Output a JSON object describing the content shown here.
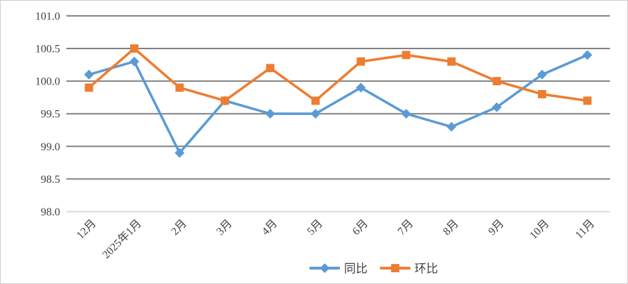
{
  "chart_data": {
    "type": "line",
    "title": "",
    "categories": [
      "12月",
      "2025年1月",
      "2月",
      "3月",
      "4月",
      "5月",
      "6月",
      "7月",
      "8月",
      "9月",
      "10月",
      "11月"
    ],
    "series": [
      {
        "name": "同比",
        "marker": "diamond",
        "color": "#5B9BD5",
        "values": [
          100.1,
          100.3,
          98.9,
          99.7,
          99.5,
          99.5,
          99.9,
          99.5,
          99.3,
          99.6,
          100.1,
          100.4
        ]
      },
      {
        "name": "环比",
        "marker": "square",
        "color": "#ED7D31",
        "values": [
          99.9,
          100.5,
          99.9,
          99.7,
          100.2,
          99.7,
          100.3,
          100.4,
          100.3,
          100.0,
          99.8,
          99.7
        ]
      }
    ],
    "xlabel": "",
    "ylabel": "",
    "ylim": [
      98.0,
      101.0
    ],
    "ytick_step": 0.5,
    "ytick_labels": [
      "98.0",
      "98.5",
      "99.0",
      "99.5",
      "100.0",
      "100.5",
      "101.0"
    ],
    "grid": true,
    "legend_position": "bottom",
    "colors": {
      "gridline": "#808080",
      "axis_line": "#D9D9D9",
      "label_text": "#404040",
      "background": "#FFFFFF",
      "border": "#D0CECC"
    }
  }
}
